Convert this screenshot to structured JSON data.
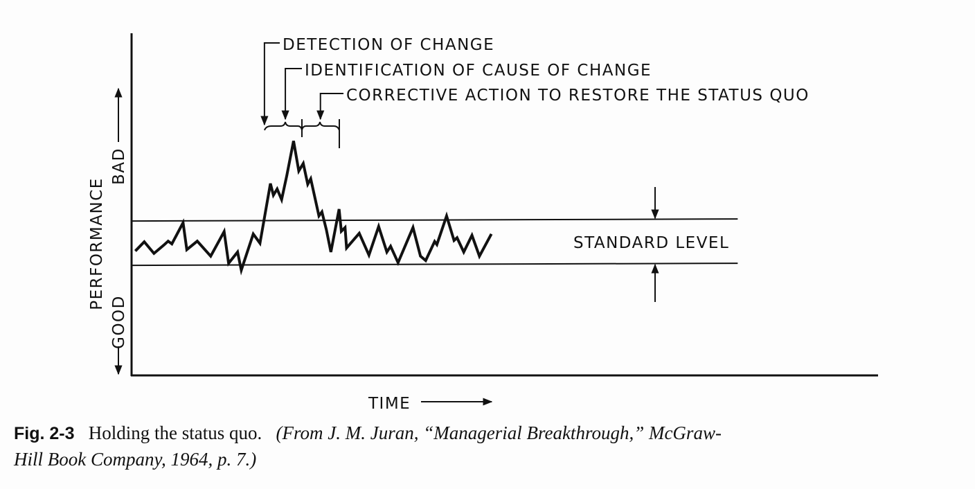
{
  "chart_data": {
    "type": "line",
    "title": "",
    "xlabel": "TIME",
    "ylabel": "PERFORMANCE",
    "ylabel_top": "BAD",
    "ylabel_bottom": "GOOD",
    "xlim": [
      0,
      100
    ],
    "ylim": [
      0,
      100
    ],
    "grid": false,
    "series": [
      {
        "name": "performance",
        "x": [
          0.5,
          1.7,
          3.0,
          4.3,
          4.9,
          5.4,
          6.9,
          7.4,
          8.8,
          10.6,
          12.4,
          13.0,
          14.2,
          14.7,
          16.3,
          17.2,
          18.6,
          19.0,
          19.5,
          20.1,
          20.8,
          21.7,
          22.4,
          23.0,
          23.6,
          24.0,
          25.1,
          25.5,
          26.1,
          26.7,
          27.8,
          28.1,
          28.6,
          28.8,
          30.5,
          31.8,
          33.1,
          34.2,
          34.7,
          35.7,
          37.7,
          38.7,
          39.4,
          40.6,
          40.9,
          42.2,
          43.2,
          43.6,
          44.5,
          45.6,
          46.6,
          48.2
        ],
        "y": [
          36.5,
          39.2,
          35.8,
          38.2,
          39.4,
          38.6,
          44.8,
          36.9,
          39.4,
          35.0,
          42.2,
          32.9,
          36.2,
          30.9,
          41.5,
          38.8,
          56.3,
          52.9,
          54.7,
          51.6,
          58.7,
          68.8,
          60.0,
          62.2,
          56.1,
          57.7,
          46.8,
          48.0,
          42.7,
          36.2,
          48.8,
          42.3,
          43.4,
          37.4,
          41.7,
          35.3,
          43.7,
          36.2,
          37.9,
          33.1,
          43.4,
          35.0,
          33.7,
          39.3,
          38.4,
          46.8,
          39.6,
          40.4,
          36.2,
          41.1,
          35.0,
          41.5
        ]
      }
    ],
    "standard_level": {
      "label": "STANDARD LEVEL",
      "upper": 45.3,
      "lower": 32.3,
      "x_end": 81.2
    },
    "annotations": [
      {
        "text": "DETECTION OF CHANGE",
        "x": 17.8
      },
      {
        "text": "IDENTIFICATION OF CAUSE OF CHANGE",
        "x": 20.6
      },
      {
        "text": "CORRECTIVE ACTION TO RESTORE THE STATUS QUO",
        "x": 25.3
      }
    ]
  },
  "caption": {
    "fig": "Fig. 2-3",
    "title": "Holding the status quo.",
    "source_line1": "(From J. M. Juran, “Managerial Breakthrough,” McGraw-",
    "source_line2": "Hill Book Company, 1964, p. 7.)"
  }
}
